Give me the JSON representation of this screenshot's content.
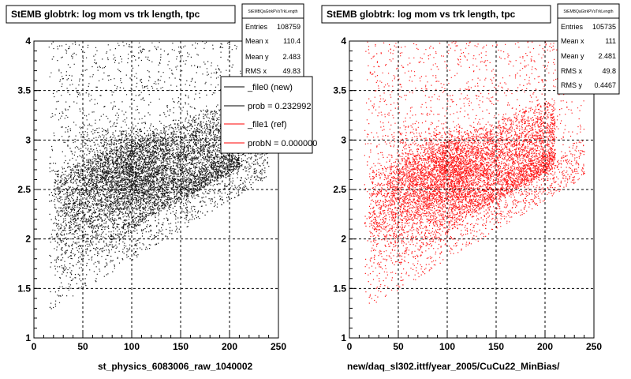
{
  "chart_data": [
    {
      "type": "scatter",
      "title": "StEMB globtrk: log mom vs trk length, tpc",
      "xlabel": "st_physics_6083006_raw_1040002",
      "ylabel": "",
      "xlim": [
        0,
        250
      ],
      "ylim": [
        1,
        4
      ],
      "xticks": [
        "0",
        "50",
        "100",
        "150",
        "200",
        "250"
      ],
      "yticks": [
        "1",
        "1.5",
        "2",
        "2.5",
        "3",
        "3.5",
        "4"
      ],
      "grid": true,
      "marker_color": "#000000",
      "stats": {
        "header": "StEMBQaGtrkPVsTrkLength",
        "rows": [
          {
            "label": "Entries",
            "value": "108759"
          },
          {
            "label": "Mean x",
            "value": "110.4"
          },
          {
            "label": "Mean y",
            "value": "2.483"
          },
          {
            "label": "RMS x",
            "value": "49.83"
          }
        ]
      },
      "legend": {
        "placement": "top-right",
        "entries": [
          {
            "label": "_file0 (new)",
            "color": "#000000"
          },
          {
            "label": "prob = 0.232992",
            "color": "#000000"
          },
          {
            "label": "_file1 (ref)",
            "color": "#ff0000"
          },
          {
            "label": "probN = 0.000000",
            "color": "#ff0000"
          }
        ]
      }
    },
    {
      "type": "scatter",
      "title": "StEMB globtrk: log mom vs trk length, tpc",
      "xlabel": "new/daq_sl302.ittf/year_2005/CuCu22_MinBias/",
      "ylabel": "",
      "xlim": [
        0,
        250
      ],
      "ylim": [
        1,
        4
      ],
      "xticks": [
        "0",
        "50",
        "100",
        "150",
        "200",
        "250"
      ],
      "yticks": [
        "1",
        "1.5",
        "2",
        "2.5",
        "3",
        "3.5",
        "4"
      ],
      "grid": true,
      "marker_color": "#ff0000",
      "stats": {
        "header": "StEMBQaGtrkPVsTrkLength",
        "rows": [
          {
            "label": "Entries",
            "value": "105735"
          },
          {
            "label": "Mean x",
            "value": "111"
          },
          {
            "label": "Mean y",
            "value": "2.481"
          },
          {
            "label": "RMS x",
            "value": "49.8"
          },
          {
            "label": "RMS y",
            "value": "0.4467"
          }
        ]
      }
    }
  ]
}
